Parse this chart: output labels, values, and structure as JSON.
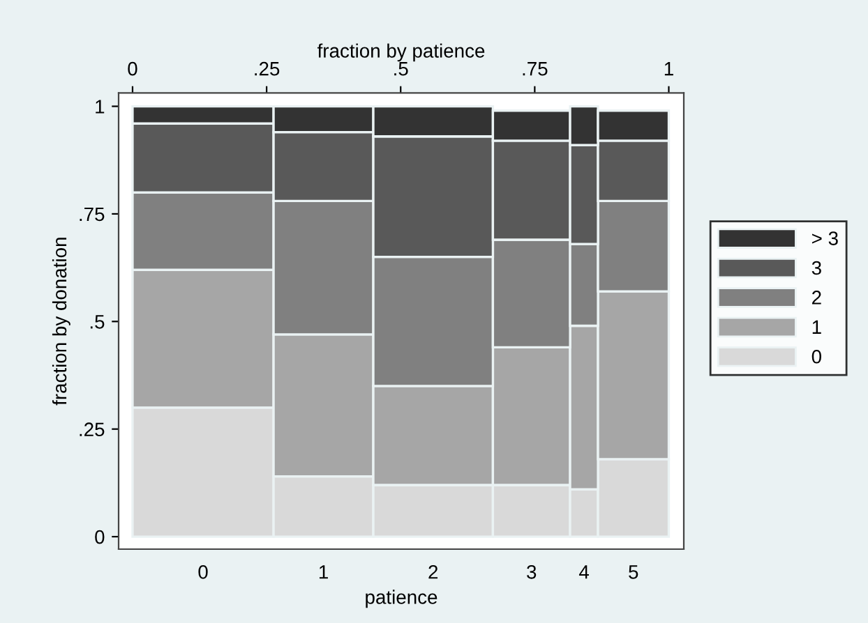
{
  "chart_data": {
    "type": "bar",
    "stacked": true,
    "x": [
      0.1315,
      0.356,
      0.5605,
      0.744,
      0.842,
      0.934
    ],
    "xlabel": "fraction by patience",
    "ylabel": "fraction by donation",
    "xlim": [
      -0.026,
      1.028
    ],
    "xticks": [
      0,
      {
        "value": 0.25,
        "label": ".25"
      },
      {
        "value": 0.5,
        "label": ".5"
      },
      {
        "value": 0.75,
        "label": ".75"
      },
      1
    ],
    "ylim": [
      -0.029,
      1.031
    ],
    "yticks": [
      0,
      {
        "value": 0.25,
        "label": ".25"
      },
      {
        "value": 0.5,
        "label": ".5"
      },
      {
        "value": 0.75,
        "label": ".75"
      },
      1
    ],
    "series": [
      {
        "name": "0",
        "color": "#d9d9d9",
        "values": [
          0.3,
          0.14,
          0.12,
          0.12,
          0.11,
          0.18
        ]
      },
      {
        "name": "1",
        "color": "#a6a6a6",
        "values": [
          0.32,
          0.33,
          0.23,
          0.32,
          0.38,
          0.39
        ]
      },
      {
        "name": "2",
        "color": "#808080",
        "values": [
          0.18,
          0.31,
          0.3,
          0.25,
          0.19,
          0.21
        ]
      },
      {
        "name": "3",
        "color": "#595959",
        "values": [
          0.16,
          0.16,
          0.28,
          0.23,
          0.23,
          0.14
        ]
      },
      {
        "name": "> 3",
        "color": "#333333",
        "values": [
          0.04,
          0.06,
          0.07,
          0.07,
          0.09,
          0.07
        ]
      }
    ],
    "annotations": [
      "0",
      "1",
      "2",
      "3",
      "4",
      "5",
      "patience"
    ],
    "grid": false,
    "legend": "right"
  }
}
